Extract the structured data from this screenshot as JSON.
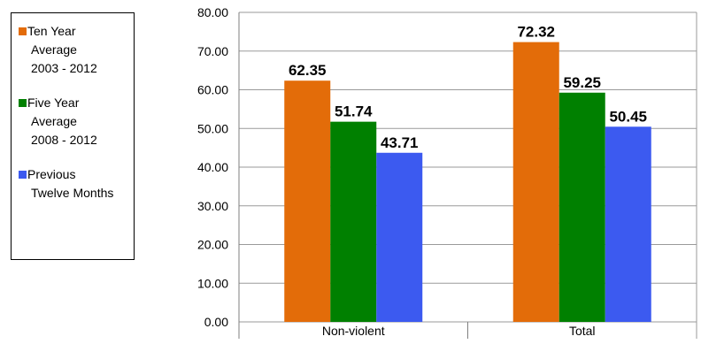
{
  "chart_data": {
    "type": "bar",
    "categories": [
      "Non-violent",
      "Total"
    ],
    "series": [
      {
        "name": "Ten Year Average 2003 - 2012",
        "values": [
          62.35,
          72.32
        ],
        "color": "#e36c09",
        "legend_lines": [
          "Ten Year",
          "Average",
          "2003 - 2012"
        ]
      },
      {
        "name": "Five Year Average 2008 - 2012",
        "values": [
          51.74,
          59.25
        ],
        "color": "#008000",
        "legend_lines": [
          "Five Year",
          "Average",
          "2008 - 2012"
        ]
      },
      {
        "name": "Previous Twelve Months",
        "values": [
          43.71,
          50.45
        ],
        "color": "#3c5af0",
        "legend_lines": [
          "Previous",
          "Twelve Months"
        ]
      }
    ],
    "data_labels": [
      [
        "62.35",
        "72.32"
      ],
      [
        "51.74",
        "59.25"
      ],
      [
        "43.71",
        "50.45"
      ]
    ],
    "ylim": [
      0,
      80
    ],
    "yticks": [
      "0.00",
      "10.00",
      "20.00",
      "30.00",
      "40.00",
      "50.00",
      "60.00",
      "70.00",
      "80.00"
    ],
    "grid": true,
    "legend_position": "left",
    "title": "",
    "xlabel": "",
    "ylabel": ""
  }
}
